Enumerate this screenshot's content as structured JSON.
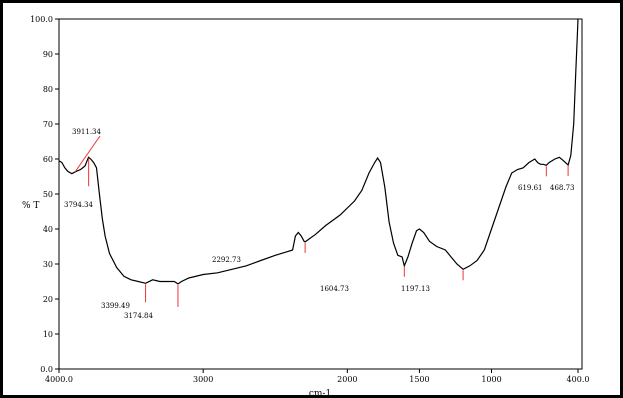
{
  "chart_data": {
    "type": "line",
    "xlabel": "cm-1",
    "ylabel": "% T",
    "xlim": [
      4000,
      400
    ],
    "ylim": [
      0,
      100
    ],
    "x_ticks": [
      {
        "value": 4000,
        "label": "4000.0"
      },
      {
        "value": 3000,
        "label": "3000"
      },
      {
        "value": 2000,
        "label": "2000"
      },
      {
        "value": 1500,
        "label": "1500"
      },
      {
        "value": 1000,
        "label": "1000"
      },
      {
        "value": 400,
        "label": "400.0"
      }
    ],
    "y_ticks": [
      {
        "value": 0,
        "label": "0.0"
      },
      {
        "value": 10,
        "label": "10"
      },
      {
        "value": 20,
        "label": "20"
      },
      {
        "value": 30,
        "label": "30"
      },
      {
        "value": 40,
        "label": "40"
      },
      {
        "value": 50,
        "label": "50"
      },
      {
        "value": 60,
        "label": "60"
      },
      {
        "value": 70,
        "label": "70"
      },
      {
        "value": 80,
        "label": "80"
      },
      {
        "value": 90,
        "label": "90"
      },
      {
        "value": 100,
        "label": "100.0"
      }
    ],
    "series": [
      {
        "color": "#000000",
        "points": [
          [
            4000,
            59.5
          ],
          [
            3980,
            59
          ],
          [
            3960,
            57.5
          ],
          [
            3940,
            56.5
          ],
          [
            3911.34,
            55.8
          ],
          [
            3880,
            56.5
          ],
          [
            3850,
            57
          ],
          [
            3820,
            58
          ],
          [
            3800,
            60
          ],
          [
            3794.34,
            60.5
          ],
          [
            3780,
            60
          ],
          [
            3760,
            59
          ],
          [
            3740,
            57.5
          ],
          [
            3720,
            50
          ],
          [
            3700,
            43
          ],
          [
            3680,
            38
          ],
          [
            3650,
            33
          ],
          [
            3600,
            29
          ],
          [
            3550,
            26.5
          ],
          [
            3500,
            25.5
          ],
          [
            3450,
            25
          ],
          [
            3399.49,
            24.5
          ],
          [
            3350,
            25.5
          ],
          [
            3300,
            25
          ],
          [
            3250,
            25
          ],
          [
            3200,
            25
          ],
          [
            3174.84,
            24.3
          ],
          [
            3150,
            25
          ],
          [
            3100,
            26
          ],
          [
            3000,
            27
          ],
          [
            2900,
            27.5
          ],
          [
            2800,
            28.5
          ],
          [
            2700,
            29.5
          ],
          [
            2600,
            31
          ],
          [
            2500,
            32.5
          ],
          [
            2420,
            33.5
          ],
          [
            2380,
            34
          ],
          [
            2360,
            38
          ],
          [
            2340,
            39
          ],
          [
            2320,
            38
          ],
          [
            2300,
            36.5
          ],
          [
            2292.73,
            36.3
          ],
          [
            2270,
            37
          ],
          [
            2220,
            38.5
          ],
          [
            2150,
            41
          ],
          [
            2050,
            44
          ],
          [
            1950,
            48
          ],
          [
            1900,
            51
          ],
          [
            1850,
            56
          ],
          [
            1810,
            59
          ],
          [
            1790,
            60.3
          ],
          [
            1770,
            59
          ],
          [
            1740,
            52
          ],
          [
            1710,
            42
          ],
          [
            1680,
            36
          ],
          [
            1650,
            32.5
          ],
          [
            1620,
            32
          ],
          [
            1604.73,
            29.5
          ],
          [
            1580,
            32
          ],
          [
            1550,
            36
          ],
          [
            1520,
            39.5
          ],
          [
            1500,
            40
          ],
          [
            1470,
            39
          ],
          [
            1430,
            36.5
          ],
          [
            1380,
            35
          ],
          [
            1320,
            34
          ],
          [
            1280,
            32
          ],
          [
            1240,
            30
          ],
          [
            1197.13,
            28.5
          ],
          [
            1150,
            29.5
          ],
          [
            1100,
            31
          ],
          [
            1050,
            34
          ],
          [
            1000,
            40
          ],
          [
            950,
            46
          ],
          [
            900,
            52
          ],
          [
            860,
            56
          ],
          [
            820,
            57
          ],
          [
            780,
            57.5
          ],
          [
            740,
            59
          ],
          [
            700,
            60
          ],
          [
            680,
            59
          ],
          [
            660,
            58.5
          ],
          [
            640,
            58.5
          ],
          [
            619.61,
            58.2
          ],
          [
            600,
            59
          ],
          [
            560,
            60
          ],
          [
            530,
            60.5
          ],
          [
            500,
            59.5
          ],
          [
            468.73,
            58.3
          ],
          [
            450,
            61
          ],
          [
            430,
            70
          ],
          [
            415,
            85
          ],
          [
            405,
            95
          ],
          [
            400,
            100
          ]
        ]
      }
    ],
    "peak_labels": [
      {
        "x": 3911.34,
        "y": 55.8,
        "label": "3911.34"
      },
      {
        "x": 3794.34,
        "y": 60.5,
        "label": "3794.34"
      },
      {
        "x": 3399.49,
        "y": 24.5,
        "label": "3399.49"
      },
      {
        "x": 3174.84,
        "y": 24.3,
        "label": "3174.84"
      },
      {
        "x": 2292.73,
        "y": 36.3,
        "label": "2292.73"
      },
      {
        "x": 1604.73,
        "y": 29.5,
        "label": "1604.73"
      },
      {
        "x": 1197.13,
        "y": 28.5,
        "label": "1197.13"
      },
      {
        "x": 619.61,
        "y": 58.2,
        "label": "619.61"
      },
      {
        "x": 468.73,
        "y": 58.3,
        "label": "468.73"
      }
    ],
    "grid": false,
    "legend": "none"
  }
}
